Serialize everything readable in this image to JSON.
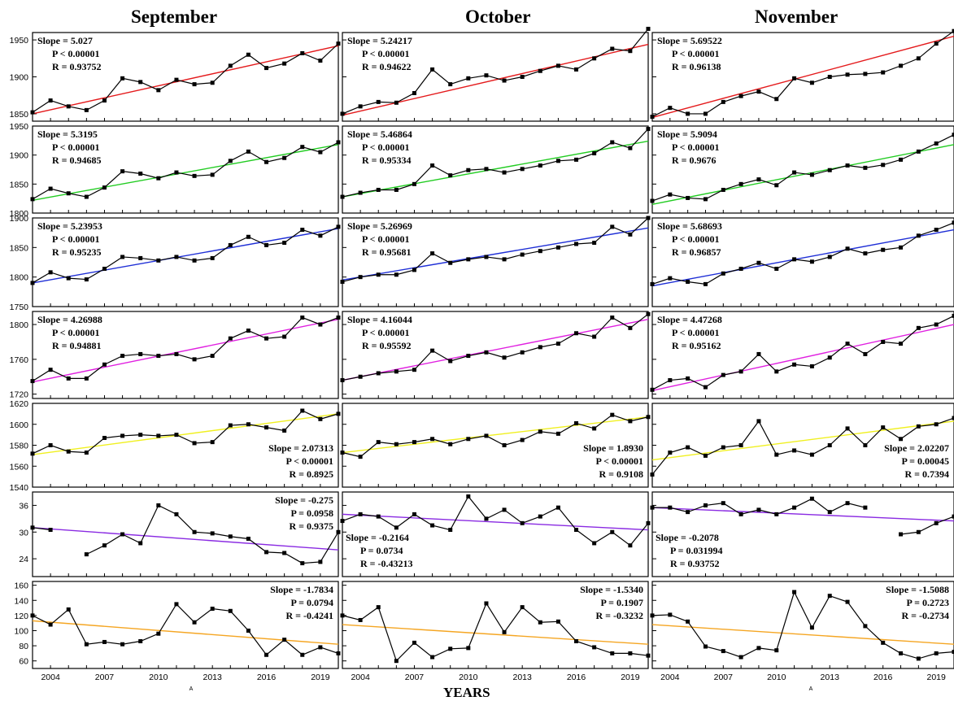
{
  "titles": {
    "col0": "September",
    "col1": "October",
    "col2": "November"
  },
  "x_axis_label": "YEARS",
  "x_ticks": [
    2004,
    2007,
    2010,
    2013,
    2016,
    2019
  ],
  "x_marker": "A",
  "colors": {
    "row0": "#e41a1c",
    "row1": "#22cc22",
    "row2": "#1f2fd6",
    "row3": "#e020e0",
    "row4": "#f0f020",
    "row5": "#8a2be2",
    "row6": "#f5a623",
    "data": "#000000"
  },
  "chart_data": {
    "type": "line",
    "years": [
      2003,
      2004,
      2005,
      2006,
      2007,
      2008,
      2009,
      2010,
      2011,
      2012,
      2013,
      2014,
      2015,
      2016,
      2017,
      2018,
      2019,
      2020
    ],
    "rows": [
      {
        "ylim": [
          1840,
          1960
        ],
        "yticks": [
          1850,
          1900,
          1950
        ],
        "stats_position": "top-left",
        "panels": [
          {
            "values": [
              1852,
              1868,
              1860,
              1855,
              1868,
              1898,
              1893,
              1882,
              1896,
              1890,
              1892,
              1915,
              1930,
              1912,
              1918,
              1932,
              1922,
              1945
            ],
            "fit": [
              1850,
              1942
            ],
            "stats": [
              "Slope = 5.027",
              "P < 0.00001",
              "R = 0.93752"
            ]
          },
          {
            "values": [
              1850,
              1860,
              1866,
              1865,
              1878,
              1910,
              1890,
              1898,
              1902,
              1895,
              1900,
              1908,
              1915,
              1910,
              1925,
              1938,
              1935,
              1965
            ],
            "fit": [
              1848,
              1944
            ],
            "stats": [
              "Slope = 5.24217",
              "P < 0.00001",
              "R = 0.94622"
            ]
          },
          {
            "values": [
              1846,
              1858,
              1850,
              1850,
              1866,
              1874,
              1880,
              1870,
              1898,
              1892,
              1900,
              1903,
              1904,
              1906,
              1915,
              1925,
              1945,
              1962
            ],
            "fit": [
              1845,
              1955
            ],
            "stats": [
              "Slope = 5.69522",
              "P < 0.00001",
              "R = 0.96138"
            ]
          }
        ]
      },
      {
        "ylim": [
          1800,
          1950
        ],
        "yticks": [
          1800,
          1850,
          1900,
          1950
        ],
        "stats_position": "top-left",
        "panels": [
          {
            "values": [
              1824,
              1842,
              1834,
              1828,
              1844,
              1872,
              1868,
              1860,
              1870,
              1864,
              1866,
              1890,
              1906,
              1888,
              1895,
              1914,
              1905,
              1922
            ],
            "fit": [
              1822,
              1918
            ],
            "stats": [
              "Slope = 5.3195",
              "P < 0.00001",
              "R = 0.94685"
            ]
          },
          {
            "values": [
              1828,
              1835,
              1840,
              1840,
              1850,
              1882,
              1865,
              1874,
              1876,
              1870,
              1876,
              1882,
              1890,
              1892,
              1903,
              1922,
              1912,
              1945
            ],
            "fit": [
              1828,
              1924
            ],
            "stats": [
              "Slope = 5.46864",
              "P < 0.00001",
              "R = 0.95334"
            ]
          },
          {
            "values": [
              1821,
              1832,
              1826,
              1824,
              1840,
              1850,
              1858,
              1848,
              1870,
              1866,
              1874,
              1882,
              1878,
              1883,
              1892,
              1906,
              1920,
              1935
            ],
            "fit": [
              1815,
              1918
            ],
            "stats": [
              "Slope = 5.9094",
              "P < 0.00001",
              "R = 0.9676"
            ]
          }
        ]
      },
      {
        "ylim": [
          1750,
          1900
        ],
        "yticks": [
          1750,
          1800,
          1850,
          1900
        ],
        "stats_position": "top-left",
        "panels": [
          {
            "values": [
              1790,
              1808,
              1798,
              1796,
              1814,
              1834,
              1832,
              1828,
              1834,
              1828,
              1832,
              1854,
              1868,
              1854,
              1858,
              1880,
              1870,
              1885
            ],
            "fit": [
              1790,
              1882
            ],
            "stats": [
              "Slope = 5.23953",
              "P < 0.00001",
              "R = 0.95235"
            ]
          },
          {
            "values": [
              1792,
              1800,
              1804,
              1804,
              1812,
              1840,
              1824,
              1830,
              1834,
              1830,
              1838,
              1844,
              1850,
              1856,
              1858,
              1885,
              1872,
              1900
            ],
            "fit": [
              1795,
              1883
            ],
            "stats": [
              "Slope = 5.26969",
              "P < 0.00001",
              "R = 0.95681"
            ]
          },
          {
            "values": [
              1788,
              1798,
              1792,
              1788,
              1806,
              1814,
              1824,
              1814,
              1830,
              1826,
              1834,
              1848,
              1840,
              1846,
              1850,
              1870,
              1880,
              1892
            ],
            "fit": [
              1785,
              1880
            ],
            "stats": [
              "Slope = 5.68693",
              "P < 0.00001",
              "R = 0.96857"
            ]
          }
        ]
      },
      {
        "ylim": [
          1715,
          1815
        ],
        "yticks": [
          1720,
          1760,
          1800
        ],
        "stats_position": "top-left",
        "panels": [
          {
            "values": [
              1735,
              1748,
              1738,
              1738,
              1754,
              1764,
              1766,
              1764,
              1766,
              1760,
              1764,
              1784,
              1793,
              1784,
              1786,
              1808,
              1800,
              1808
            ],
            "fit": [
              1734,
              1806
            ],
            "stats": [
              "Slope = 4.26988",
              "P < 0.00001",
              "R = 0.94881"
            ]
          },
          {
            "values": [
              1736,
              1740,
              1744,
              1746,
              1748,
              1770,
              1758,
              1764,
              1768,
              1762,
              1768,
              1774,
              1778,
              1790,
              1786,
              1808,
              1796,
              1812
            ],
            "fit": [
              1736,
              1806
            ],
            "stats": [
              "Slope = 4.16044",
              "P < 0.00001",
              "R = 0.95592"
            ]
          },
          {
            "values": [
              1725,
              1736,
              1738,
              1728,
              1742,
              1746,
              1766,
              1746,
              1754,
              1752,
              1762,
              1778,
              1766,
              1780,
              1778,
              1796,
              1800,
              1810
            ],
            "fit": [
              1724,
              1800
            ],
            "stats": [
              "Slope = 4.47268",
              "P < 0.00001",
              "R = 0.95162"
            ]
          }
        ]
      },
      {
        "ylim": [
          1540,
          1620
        ],
        "yticks": [
          1540,
          1560,
          1580,
          1600,
          1620
        ],
        "stats_position": "bottom-right",
        "panels": [
          {
            "values": [
              1572,
              1580,
              1574,
              1573,
              1587,
              1589,
              1590,
              1589,
              1590,
              1582,
              1583,
              1599,
              1600,
              1597,
              1594,
              1613,
              1605,
              1610
            ],
            "fit": [
              1571,
              1610
            ],
            "stats": [
              "Slope = 2.07313",
              "P < 0.00001",
              "R = 0.8925"
            ]
          },
          {
            "values": [
              1573,
              1569,
              1583,
              1581,
              1583,
              1586,
              1581,
              1586,
              1589,
              1580,
              1585,
              1593,
              1591,
              1601,
              1596,
              1609,
              1603,
              1607
            ],
            "fit": [
              1573,
              1607
            ],
            "stats": [
              "Slope = 1.8930",
              "P < 0.00001",
              "R = 0.9108"
            ]
          },
          {
            "values": [
              1552,
              1573,
              1578,
              1570,
              1578,
              1580,
              1603,
              1571,
              1575,
              1571,
              1580,
              1596,
              1580,
              1597,
              1586,
              1598,
              1600,
              1606
            ],
            "fit": [
              1566,
              1603
            ],
            "stats": [
              "Slope = 2.02207",
              "P = 0.00045",
              "R = 0.7394"
            ]
          }
        ]
      },
      {
        "ylim": [
          20,
          39
        ],
        "yticks": [
          24,
          30,
          36
        ],
        "stats_position": "mixed",
        "panels": [
          {
            "values": [
              31,
              30.5,
              null,
              25,
              27,
              29.5,
              27.5,
              36,
              34,
              30,
              29.7,
              29,
              28.5,
              25.5,
              25.3,
              23,
              23.3,
              30
            ],
            "fit": [
              31,
              26
            ],
            "stats": [
              "Slope = -0.275",
              "P = 0.0958",
              "R = 0.9375"
            ],
            "stats_position": "top-right"
          },
          {
            "values": [
              32.5,
              34,
              33.5,
              31,
              34,
              31.5,
              30.5,
              38,
              33,
              35,
              32,
              33.5,
              35.5,
              30.5,
              27.5,
              30,
              27,
              32
            ],
            "fit": [
              34,
              30.5
            ],
            "stats": [
              "Slope = -0.2164",
              "P = 0.0734",
              "R = -0.43213"
            ],
            "stats_position": "bottom-left"
          },
          {
            "values": [
              35.5,
              35.5,
              34.5,
              36,
              36.5,
              34,
              35,
              34,
              35.5,
              37.5,
              34.5,
              36.5,
              35.5,
              null,
              29.5,
              30,
              32,
              33.5
            ],
            "fit": [
              35.5,
              32.5
            ],
            "stats": [
              "Slope = -0.2078",
              "P = 0.031994",
              "R = 0.93752"
            ],
            "stats_position": "bottom-left"
          }
        ]
      },
      {
        "ylim": [
          50,
          165
        ],
        "yticks": [
          60,
          80,
          100,
          120,
          140,
          160
        ],
        "stats_position": "top-right",
        "panels": [
          {
            "values": [
              120,
              108,
              128,
              82,
              85,
              82,
              86,
              96,
              135,
              111,
              129,
              126,
              100,
              68,
              88,
              68,
              78,
              70
            ],
            "fit": [
              113,
              82
            ],
            "stats": [
              "Slope = -1.7834",
              "P = 0.0794",
              "R = -0.4241"
            ]
          },
          {
            "values": [
              120,
              114,
              131,
              60,
              84,
              65,
              76,
              77,
              136,
              98,
              131,
              111,
              112,
              86,
              78,
              70,
              70,
              67
            ],
            "fit": [
              108,
              82
            ],
            "stats": [
              "Slope = -1.5340",
              "P = 0.1907",
              "R = -0.3232"
            ]
          },
          {
            "values": [
              120,
              121,
              112,
              79,
              73,
              65,
              77,
              74,
              151,
              104,
              146,
              138,
              106,
              84,
              70,
              63,
              70,
              72
            ],
            "fit": [
              108,
              82
            ],
            "stats": [
              "Slope = -1.5088",
              "P = 0.2723",
              "R = -0.2734"
            ]
          }
        ]
      }
    ]
  }
}
